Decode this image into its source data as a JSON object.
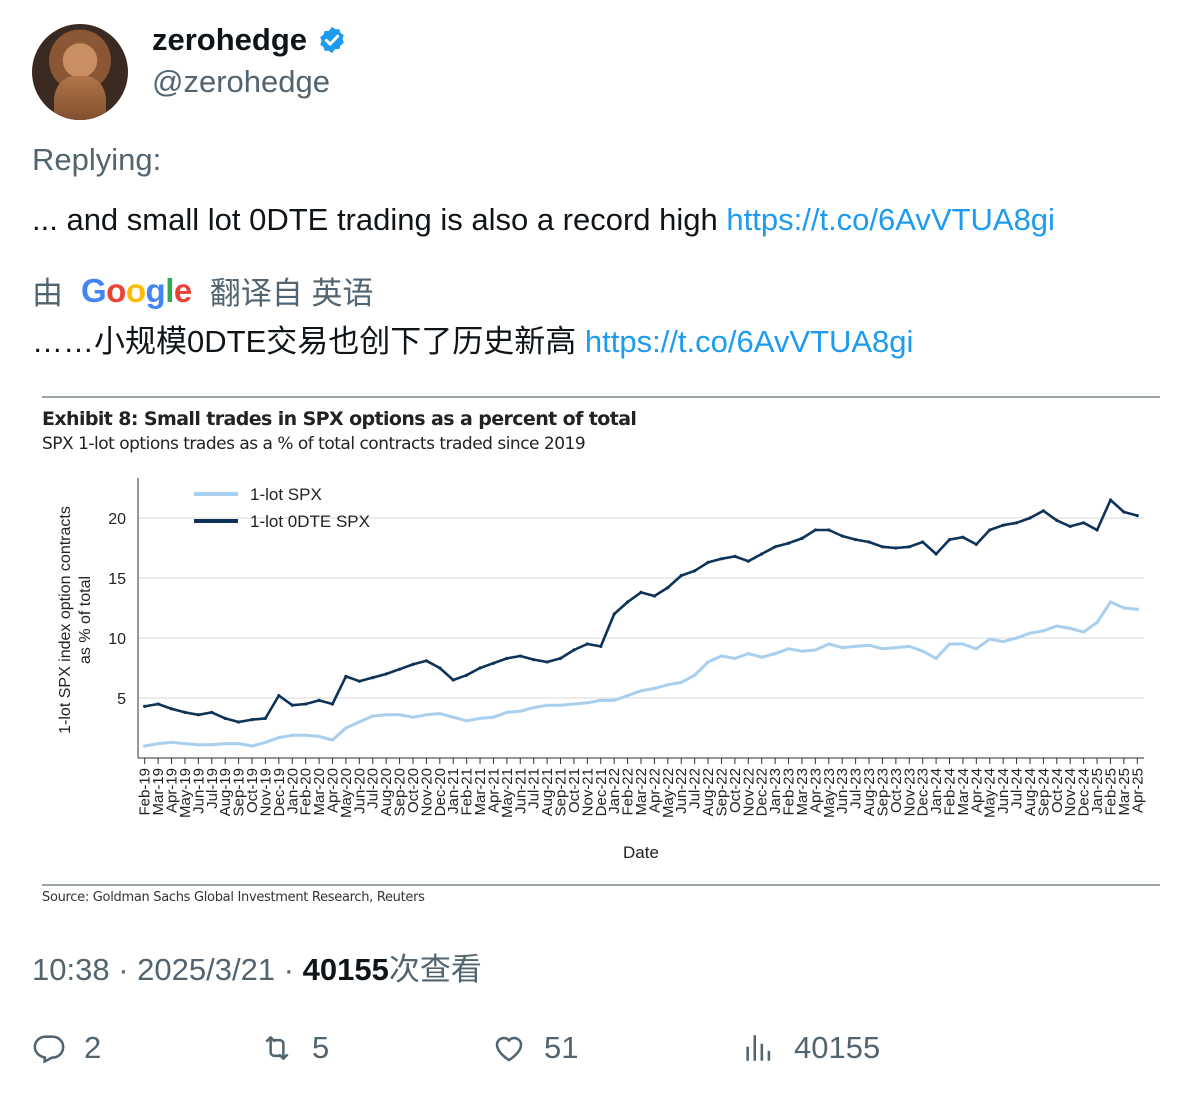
{
  "user": {
    "name": "zerohedge",
    "handle": "@zerohedge"
  },
  "tweet": {
    "replying": "Replying:",
    "text": "... and small lot 0DTE trading is also a record high",
    "link": "https://t.co/6AvVTUA8gi",
    "translated_prefix": "由",
    "translated_suffix": "翻译自 英语",
    "translation_text": "……小规模0DTE交易也创下了历史新高",
    "translation_link": "https://t.co/6AvVTUA8gi"
  },
  "meta": {
    "time": "10:38",
    "date": "2025/3/21",
    "views": "40155",
    "views_label": "次查看"
  },
  "actions": {
    "replies": "2",
    "retweets": "5",
    "likes": "51",
    "views": "40155"
  },
  "colors": {
    "accent": "#1d9bf0",
    "light_series": "#a9cfee",
    "dark_series": "#0e3358"
  },
  "chart_data": {
    "type": "line",
    "title": "Exhibit 8: Small trades in SPX options as a percent of total",
    "subtitle": "SPX 1-lot options trades as a % of total contracts traded since 2019",
    "source": "Source: Goldman Sachs Global Investment Research, Reuters",
    "xlabel": "Date",
    "ylabel": "1-lot SPX index option contracts as % of total",
    "ylim": [
      0,
      23
    ],
    "yticks": [
      5,
      10,
      15,
      20
    ],
    "legend_position": "top-left",
    "x": [
      "Feb-19",
      "Mar-19",
      "Apr-19",
      "May-19",
      "Jun-19",
      "Jul-19",
      "Aug-19",
      "Sep-19",
      "Oct-19",
      "Nov-19",
      "Dec-19",
      "Jan-20",
      "Feb-20",
      "Mar-20",
      "Apr-20",
      "May-20",
      "Jun-20",
      "Jul-20",
      "Aug-20",
      "Sep-20",
      "Oct-20",
      "Nov-20",
      "Dec-20",
      "Jan-21",
      "Feb-21",
      "Mar-21",
      "Apr-21",
      "May-21",
      "Jun-21",
      "Jul-21",
      "Aug-21",
      "Sep-21",
      "Oct-21",
      "Nov-21",
      "Dec-21",
      "Jan-22",
      "Feb-22",
      "Mar-22",
      "Apr-22",
      "May-22",
      "Jun-22",
      "Jul-22",
      "Aug-22",
      "Sep-22",
      "Oct-22",
      "Nov-22",
      "Dec-22",
      "Jan-23",
      "Feb-23",
      "Mar-23",
      "Apr-23",
      "May-23",
      "Jun-23",
      "Jul-23",
      "Aug-23",
      "Sep-23",
      "Oct-23",
      "Nov-23",
      "Dec-23",
      "Jan-24",
      "Feb-24",
      "Mar-24",
      "Apr-24",
      "May-24",
      "Jun-24",
      "Jul-24",
      "Aug-24",
      "Sep-24",
      "Oct-24",
      "Nov-24",
      "Dec-24",
      "Jan-25",
      "Feb-25",
      "Mar-25",
      "Apr-25"
    ],
    "series": [
      {
        "name": "1-lot SPX",
        "values": [
          1.0,
          1.2,
          1.3,
          1.2,
          1.1,
          1.1,
          1.2,
          1.2,
          1.0,
          1.3,
          1.7,
          1.9,
          1.9,
          1.8,
          1.5,
          2.5,
          3.0,
          3.5,
          3.6,
          3.6,
          3.4,
          3.6,
          3.7,
          3.4,
          3.1,
          3.3,
          3.4,
          3.8,
          3.9,
          4.2,
          4.4,
          4.4,
          4.5,
          4.6,
          4.8,
          4.8,
          5.2,
          5.6,
          5.8,
          6.1,
          6.3,
          6.9,
          8.0,
          8.5,
          8.3,
          8.7,
          8.4,
          8.7,
          9.1,
          8.9,
          9.0,
          9.5,
          9.2,
          9.3,
          9.4,
          9.1,
          9.2,
          9.3,
          8.9,
          8.3,
          9.5,
          9.5,
          9.1,
          9.9,
          9.7,
          10.0,
          10.4,
          10.6,
          11.0,
          10.8,
          10.5,
          11.3,
          13.0,
          12.5,
          12.4
        ]
      },
      {
        "name": "1-lot 0DTE SPX",
        "values": [
          4.3,
          4.5,
          4.1,
          3.8,
          3.6,
          3.8,
          3.3,
          3.0,
          3.2,
          3.3,
          5.2,
          4.4,
          4.5,
          4.8,
          4.5,
          6.8,
          6.4,
          6.7,
          7.0,
          7.4,
          7.8,
          8.1,
          7.5,
          6.5,
          6.9,
          7.5,
          7.9,
          8.3,
          8.5,
          8.2,
          8.0,
          8.3,
          9.0,
          9.5,
          9.3,
          12.0,
          13.0,
          13.8,
          13.5,
          14.2,
          15.2,
          15.6,
          16.3,
          16.6,
          16.8,
          16.4,
          17.0,
          17.6,
          17.9,
          18.3,
          19.0,
          19.0,
          18.5,
          18.2,
          18.0,
          17.6,
          17.5,
          17.6,
          18.0,
          17.0,
          18.2,
          18.4,
          17.8,
          19.0,
          19.4,
          19.6,
          20.0,
          20.6,
          19.8,
          19.3,
          19.6,
          19.0,
          21.5,
          20.5,
          20.2
        ]
      }
    ]
  }
}
